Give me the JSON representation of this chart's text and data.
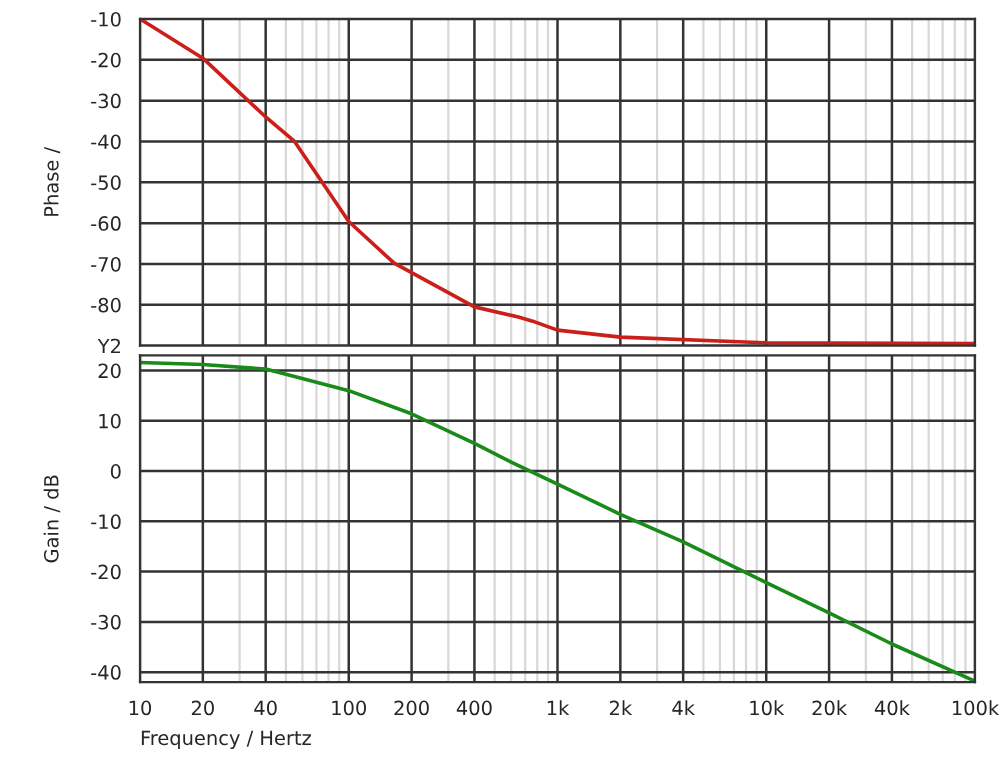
{
  "chart_data": [
    {
      "type": "line",
      "ylabel": "Phase /",
      "x": [
        10,
        20,
        40,
        55,
        100,
        165,
        400,
        650,
        760,
        1000,
        2000,
        10000,
        100000
      ],
      "series": [
        {
          "color": "#cc1f1a",
          "values": [
            -10,
            -19.6,
            -34,
            -40,
            -59.6,
            -69.8,
            -80.5,
            -83,
            -84,
            -86.2,
            -87.9,
            -89.3,
            -89.5
          ]
        }
      ],
      "log": "x",
      "xlim": [
        10,
        100000
      ],
      "xticks": [
        10,
        20,
        40,
        100,
        200,
        400,
        1000,
        2000,
        4000,
        10000,
        20000,
        40000,
        100000
      ],
      "ylim": [
        -90,
        -10
      ],
      "yticks": [
        -10,
        -20,
        -30,
        -40,
        -50,
        -60,
        -70,
        -80,
        {
          "value": -90,
          "label": "Y2"
        }
      ],
      "tick_labels": "y",
      "grid": true,
      "legend": false
    },
    {
      "type": "line",
      "xlabel": "Frequency / Hertz",
      "ylabel": "Gain / dB",
      "x": [
        10,
        20,
        40,
        55,
        100,
        200,
        400,
        600,
        1000,
        2000,
        4000,
        10000,
        20000,
        40000,
        100000
      ],
      "series": [
        {
          "color": "#1a8a1a",
          "values": [
            21.6,
            21.2,
            20.3,
            18.8,
            16,
            11.4,
            5.5,
            1.8,
            -2.6,
            -8.6,
            -14.1,
            -22.2,
            -28.2,
            -34.4,
            -41.8
          ]
        }
      ],
      "log": "x",
      "xlim": [
        10,
        100000
      ],
      "xticks": [
        10,
        20,
        40,
        100,
        200,
        400,
        {
          "value": 1000,
          "label": "1k"
        },
        {
          "value": 2000,
          "label": "2k"
        },
        {
          "value": 4000,
          "label": "4k"
        },
        {
          "value": 10000,
          "label": "10k"
        },
        {
          "value": 20000,
          "label": "20k"
        },
        {
          "value": 40000,
          "label": "40k"
        },
        {
          "value": 100000,
          "label": "100k"
        }
      ],
      "ylim": [
        -42,
        23
      ],
      "yticks": [
        20,
        10,
        0,
        -10,
        -20,
        -30,
        -40
      ],
      "grid": true,
      "legend": false
    }
  ]
}
